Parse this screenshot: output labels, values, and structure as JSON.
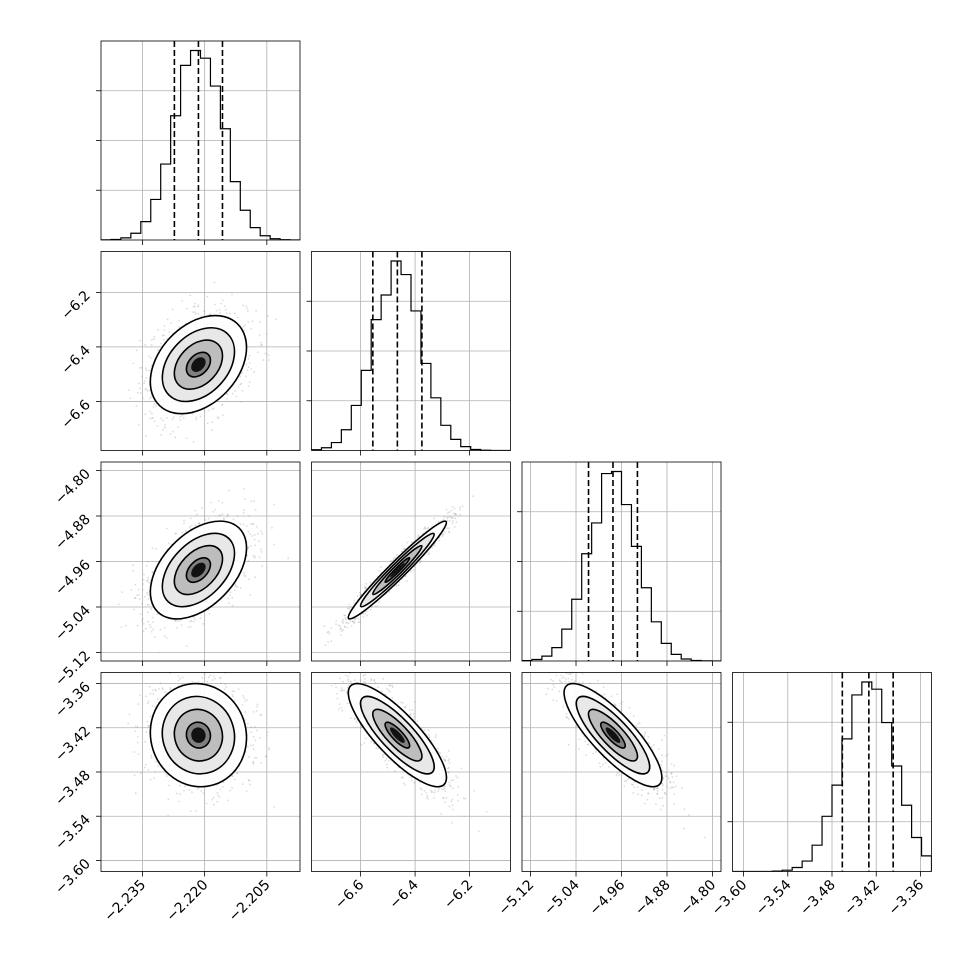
{
  "chart_data": {
    "type": "corner",
    "title": "",
    "parameters": [
      {
        "index": 0,
        "label": "",
        "range": [
          -2.245,
          -2.197
        ],
        "ticks": [
          -2.235,
          -2.22,
          -2.205
        ],
        "tick_labels": [
          "−2.235",
          "−2.220",
          "−2.205"
        ],
        "median": -2.2215,
        "quantiles": [
          -2.2273,
          -2.2215,
          -2.2157
        ],
        "sigma": 0.0058
      },
      {
        "index": 1,
        "label": "",
        "range": [
          -6.78,
          -6.05
        ],
        "ticks": [
          -6.6,
          -6.4,
          -6.2
        ],
        "tick_labels": [
          "−6.6",
          "−6.4",
          "−6.2"
        ],
        "median": -6.465,
        "quantiles": [
          -6.555,
          -6.465,
          -6.375
        ],
        "sigma": 0.09
      },
      {
        "index": 2,
        "label": "",
        "range": [
          -5.135,
          -4.785
        ],
        "ticks": [
          -5.12,
          -5.04,
          -4.96,
          -4.88,
          -4.8
        ],
        "tick_labels": [
          "−5.12",
          "−5.04",
          "−4.96",
          "−4.88",
          "−4.80"
        ],
        "median": -4.975,
        "quantiles": [
          -5.018,
          -4.975,
          -4.932
        ],
        "sigma": 0.043
      },
      {
        "index": 3,
        "label": "",
        "range": [
          -3.615,
          -3.345
        ],
        "ticks": [
          -3.6,
          -3.54,
          -3.48,
          -3.42,
          -3.36
        ],
        "tick_labels": [
          "−3.60",
          "−3.54",
          "−3.48",
          "−3.42",
          "−3.36"
        ],
        "median": -3.43,
        "quantiles": [
          -3.466,
          -3.43,
          -3.397
        ],
        "sigma": 0.035
      }
    ],
    "pairs": [
      {
        "x": 0,
        "y": 1,
        "correlation": 0.35
      },
      {
        "x": 0,
        "y": 2,
        "correlation": 0.45
      },
      {
        "x": 1,
        "y": 2,
        "correlation": 0.97
      },
      {
        "x": 0,
        "y": 3,
        "correlation": -0.05
      },
      {
        "x": 1,
        "y": 3,
        "correlation": -0.82
      },
      {
        "x": 2,
        "y": 3,
        "correlation": -0.82
      }
    ],
    "histogram_bins": 20,
    "contour_levels_sigma": [
      0.5,
      1.0,
      1.5,
      2.0
    ],
    "grid": true,
    "legend": "none"
  }
}
